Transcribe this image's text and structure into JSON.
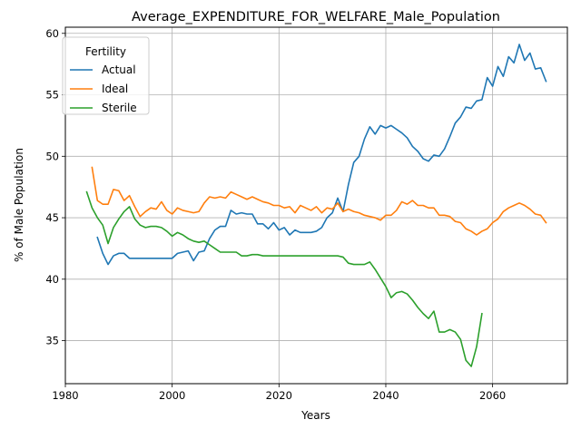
{
  "chart_data": {
    "type": "line",
    "title": "Average_EXPENDITURE_FOR_WELFARE_Male_Population",
    "xlabel": "Years",
    "ylabel": "% of Male Population",
    "xlim": [
      1980,
      2074
    ],
    "ylim": [
      31.5,
      60.5
    ],
    "xticks": [
      1980,
      2000,
      2020,
      2040,
      2060
    ],
    "yticks": [
      35,
      40,
      45,
      50,
      55,
      60
    ],
    "grid": true,
    "legend": {
      "title": "Fertility",
      "placement": "top-left"
    },
    "colors": {
      "Actual": "#1f77b4",
      "Ideal": "#ff7f0e",
      "Sterile": "#2ca02c"
    },
    "series": [
      {
        "name": "Actual",
        "x": [
          1986,
          1987,
          1988,
          1989,
          1990,
          1991,
          1992,
          1993,
          1994,
          1995,
          1996,
          1997,
          1998,
          1999,
          2000,
          2001,
          2002,
          2003,
          2004,
          2005,
          2006,
          2007,
          2008,
          2009,
          2010,
          2011,
          2012,
          2013,
          2014,
          2015,
          2016,
          2017,
          2018,
          2019,
          2020,
          2021,
          2022,
          2023,
          2024,
          2025,
          2026,
          2027,
          2028,
          2029,
          2030,
          2031,
          2032,
          2033,
          2034,
          2035,
          2036,
          2037,
          2038,
          2039,
          2040,
          2041,
          2042,
          2043,
          2044,
          2045,
          2046,
          2047,
          2048,
          2049,
          2050,
          2051,
          2052,
          2053,
          2054,
          2055,
          2056,
          2057,
          2058,
          2059,
          2060,
          2061,
          2062,
          2063,
          2064,
          2065,
          2066,
          2067,
          2068,
          2069,
          2070
        ],
        "y": [
          43.4,
          42.1,
          41.2,
          41.9,
          42.1,
          42.1,
          41.7,
          41.7,
          41.7,
          41.7,
          41.7,
          41.7,
          41.7,
          41.7,
          41.7,
          42.1,
          42.2,
          42.3,
          41.5,
          42.2,
          42.3,
          43.3,
          44.0,
          44.3,
          44.3,
          45.6,
          45.3,
          45.4,
          45.3,
          45.3,
          44.5,
          44.5,
          44.1,
          44.6,
          44.0,
          44.2,
          43.6,
          44.0,
          43.8,
          43.8,
          43.8,
          43.9,
          44.2,
          45.0,
          45.4,
          46.6,
          45.5,
          47.7,
          49.5,
          50.0,
          51.4,
          52.4,
          51.8,
          52.5,
          52.3,
          52.5,
          52.2,
          51.9,
          51.5,
          50.8,
          50.4,
          49.8,
          49.6,
          50.1,
          50.0,
          50.6,
          51.6,
          52.7,
          53.2,
          54.0,
          53.9,
          54.5,
          54.6,
          56.4,
          55.7,
          57.3,
          56.5,
          58.1,
          57.6,
          59.1,
          57.8,
          58.4,
          57.1,
          57.2,
          56.1
        ]
      },
      {
        "name": "Ideal",
        "x": [
          1985,
          1986,
          1987,
          1988,
          1989,
          1990,
          1991,
          1992,
          1993,
          1994,
          1995,
          1996,
          1997,
          1998,
          1999,
          2000,
          2001,
          2002,
          2003,
          2004,
          2005,
          2006,
          2007,
          2008,
          2009,
          2010,
          2011,
          2012,
          2013,
          2014,
          2015,
          2016,
          2017,
          2018,
          2019,
          2020,
          2021,
          2022,
          2023,
          2024,
          2025,
          2026,
          2027,
          2028,
          2029,
          2030,
          2031,
          2032,
          2033,
          2034,
          2035,
          2036,
          2037,
          2038,
          2039,
          2040,
          2041,
          2042,
          2043,
          2044,
          2045,
          2046,
          2047,
          2048,
          2049,
          2050,
          2051,
          2052,
          2053,
          2054,
          2055,
          2056,
          2057,
          2058,
          2059,
          2060,
          2061,
          2062,
          2063,
          2064,
          2065,
          2066,
          2067,
          2068,
          2069,
          2070
        ],
        "y": [
          49.1,
          46.4,
          46.1,
          46.1,
          47.3,
          47.2,
          46.4,
          46.8,
          45.9,
          45.1,
          45.5,
          45.8,
          45.7,
          46.3,
          45.6,
          45.3,
          45.8,
          45.6,
          45.5,
          45.4,
          45.5,
          46.2,
          46.7,
          46.6,
          46.7,
          46.6,
          47.1,
          46.9,
          46.7,
          46.5,
          46.7,
          46.5,
          46.3,
          46.2,
          46.0,
          46.0,
          45.8,
          45.9,
          45.4,
          46.0,
          45.8,
          45.6,
          45.9,
          45.4,
          45.8,
          45.7,
          46.2,
          45.5,
          45.7,
          45.5,
          45.4,
          45.2,
          45.1,
          45.0,
          44.8,
          45.2,
          45.2,
          45.6,
          46.3,
          46.1,
          46.4,
          46.0,
          46.0,
          45.8,
          45.8,
          45.2,
          45.2,
          45.1,
          44.7,
          44.6,
          44.1,
          43.9,
          43.6,
          43.9,
          44.1,
          44.6,
          44.9,
          45.5,
          45.8,
          46.0,
          46.2,
          46.0,
          45.7,
          45.3,
          45.2,
          44.6
        ]
      },
      {
        "name": "Sterile",
        "x": [
          1984,
          1985,
          1986,
          1987,
          1988,
          1989,
          1990,
          1991,
          1992,
          1993,
          1994,
          1995,
          1996,
          1997,
          1998,
          1999,
          2000,
          2001,
          2002,
          2003,
          2004,
          2005,
          2006,
          2007,
          2008,
          2009,
          2010,
          2011,
          2012,
          2013,
          2014,
          2015,
          2016,
          2017,
          2018,
          2019,
          2020,
          2021,
          2022,
          2023,
          2024,
          2025,
          2026,
          2027,
          2028,
          2029,
          2030,
          2031,
          2032,
          2033,
          2034,
          2035,
          2036,
          2037,
          2038,
          2039,
          2040,
          2041,
          2042,
          2043,
          2044,
          2045,
          2046,
          2047,
          2048,
          2049,
          2050,
          2051,
          2052,
          2053,
          2054,
          2055,
          2056,
          2057,
          2058
        ],
        "y": [
          47.1,
          45.8,
          45.0,
          44.4,
          42.9,
          44.2,
          44.9,
          45.5,
          45.9,
          44.9,
          44.4,
          44.2,
          44.3,
          44.3,
          44.2,
          43.9,
          43.5,
          43.8,
          43.6,
          43.3,
          43.1,
          43.0,
          43.1,
          42.8,
          42.5,
          42.2,
          42.2,
          42.2,
          42.2,
          41.9,
          41.9,
          42.0,
          42.0,
          41.9,
          41.9,
          41.9,
          41.9,
          41.9,
          41.9,
          41.9,
          41.9,
          41.9,
          41.9,
          41.9,
          41.9,
          41.9,
          41.9,
          41.9,
          41.8,
          41.3,
          41.2,
          41.2,
          41.2,
          41.4,
          40.8,
          40.1,
          39.4,
          38.5,
          38.9,
          39.0,
          38.8,
          38.3,
          37.7,
          37.2,
          36.8,
          37.4,
          35.7,
          35.7,
          35.9,
          35.7,
          35.1,
          33.4,
          32.9,
          34.5,
          37.2
        ]
      }
    ]
  }
}
